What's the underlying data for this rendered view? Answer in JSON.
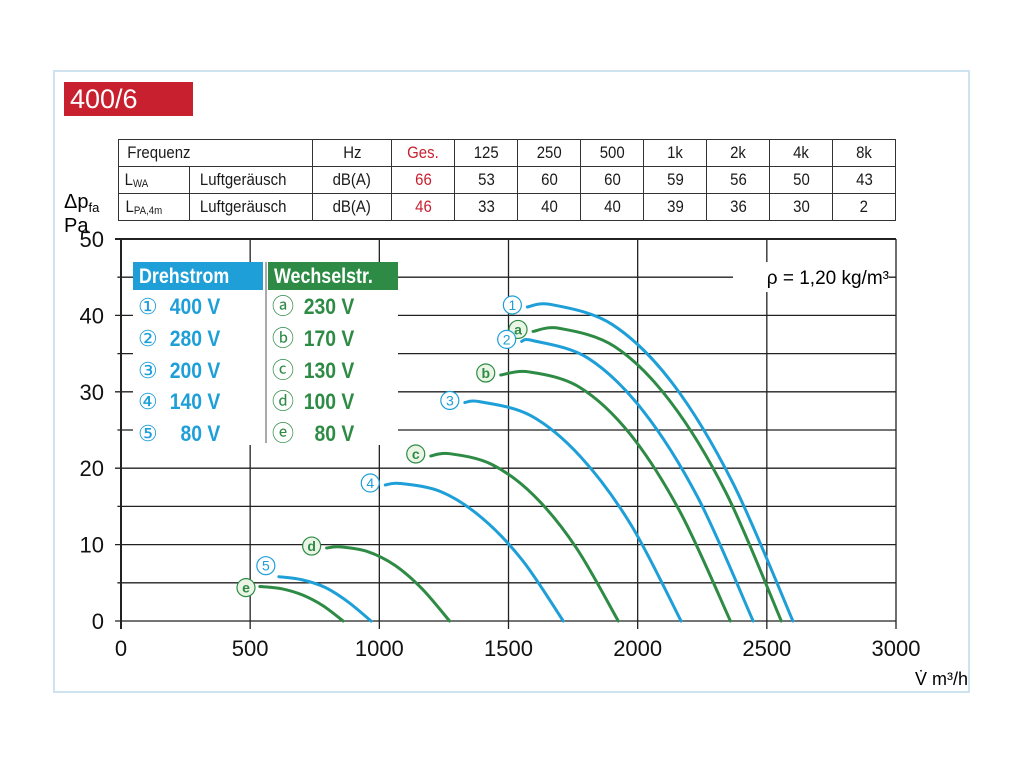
{
  "badge": "400/6",
  "table": {
    "header": [
      "Frequenz",
      "Hz",
      "Ges.",
      "125",
      "250",
      "500",
      "1k",
      "2k",
      "4k",
      "8k"
    ],
    "rows": [
      {
        "symbol": "L",
        "sub": "WA",
        "label": "Luftgeräusch",
        "unit": "dB(A)",
        "total": "66",
        "values": [
          "53",
          "60",
          "60",
          "59",
          "56",
          "50",
          "43"
        ]
      },
      {
        "symbol": "L",
        "sub": "PA,4m",
        "label": "Luftgeräusch",
        "unit": "dB(A)",
        "total": "46",
        "values": [
          "33",
          "40",
          "40",
          "39",
          "36",
          "30",
          "2"
        ]
      }
    ]
  },
  "colors": {
    "blue": "#1e9fd8",
    "green": "#2e8b45",
    "red": "#c8202f"
  },
  "chart_data": {
    "type": "line",
    "title": "400/6",
    "xlabel": "V̇ m³/h",
    "ylabel_main": "Δp",
    "ylabel_sub": "fa",
    "ylabel_unit": "Pa",
    "xlim": [
      0,
      3000
    ],
    "ylim": [
      0,
      50
    ],
    "xticks": [
      "0",
      "500",
      "1000",
      "1500",
      "2000",
      "2500",
      "3000"
    ],
    "yticks": [
      "0",
      "10",
      "20",
      "30",
      "40",
      "50"
    ],
    "grid": true,
    "annotation": "ρ = 1,20 kg/m³",
    "legend": {
      "placement": "top-left",
      "groups": [
        {
          "title": "Drehstrom",
          "color": "blue",
          "items": [
            {
              "symbol": "①",
              "label": "400 V"
            },
            {
              "symbol": "②",
              "label": "280 V"
            },
            {
              "symbol": "③",
              "label": "200 V"
            },
            {
              "symbol": "④",
              "label": "140 V"
            },
            {
              "symbol": "⑤",
              "label": "80 V"
            }
          ]
        },
        {
          "title": "Wechselstr.",
          "color": "green",
          "items": [
            {
              "symbol": "ⓐ",
              "label": "230 V"
            },
            {
              "symbol": "ⓑ",
              "label": "170 V"
            },
            {
              "symbol": "ⓒ",
              "label": "130 V"
            },
            {
              "symbol": "ⓓ",
              "label": "100 V"
            },
            {
              "symbol": "ⓔ",
              "label": "80 V"
            }
          ]
        }
      ]
    },
    "series": [
      {
        "id": "1",
        "name": "400 V",
        "color": "blue",
        "points": [
          [
            1573,
            41.1
          ],
          [
            1669,
            41.4
          ],
          [
            1902,
            38.8
          ],
          [
            2135,
            31.1
          ],
          [
            2368,
            18.1
          ],
          [
            2601,
            0
          ]
        ]
      },
      {
        "id": "a",
        "name": "230 V",
        "color": "green",
        "points": [
          [
            1595,
            37.9
          ],
          [
            1698,
            38.3
          ],
          [
            1912,
            35.9
          ],
          [
            2127,
            28.7
          ],
          [
            2342,
            16.8
          ],
          [
            2556,
            0
          ]
        ]
      },
      {
        "id": "2",
        "name": "280 V",
        "color": "blue",
        "points": [
          [
            1551,
            36.6
          ],
          [
            1595,
            36.7
          ],
          [
            1808,
            34.4
          ],
          [
            2021,
            27.5
          ],
          [
            2234,
            16.1
          ],
          [
            2447,
            0
          ]
        ]
      },
      {
        "id": "b",
        "name": "170 V",
        "color": "green",
        "points": [
          [
            1470,
            32.2
          ],
          [
            1580,
            32.6
          ],
          [
            1775,
            30.6
          ],
          [
            1970,
            24.5
          ],
          [
            2164,
            14.3
          ],
          [
            2359,
            0
          ]
        ]
      },
      {
        "id": "3",
        "name": "200 V",
        "color": "blue",
        "points": [
          [
            1331,
            28.6
          ],
          [
            1390,
            28.7
          ],
          [
            1585,
            26.9
          ],
          [
            1779,
            21.5
          ],
          [
            1974,
            12.6
          ],
          [
            2168,
            0
          ]
        ]
      },
      {
        "id": "c",
        "name": "130 V",
        "color": "green",
        "points": [
          [
            1199,
            21.6
          ],
          [
            1272,
            21.9
          ],
          [
            1435,
            20.5
          ],
          [
            1599,
            16.4
          ],
          [
            1762,
            9.6
          ],
          [
            1925,
            0
          ]
        ]
      },
      {
        "id": "4",
        "name": "140 V",
        "color": "blue",
        "points": [
          [
            1023,
            17.8
          ],
          [
            1082,
            18.0
          ],
          [
            1240,
            16.9
          ],
          [
            1397,
            13.5
          ],
          [
            1555,
            7.9
          ],
          [
            1712,
            0
          ]
        ]
      },
      {
        "id": "d",
        "name": "100 V",
        "color": "green",
        "points": [
          [
            796,
            9.55
          ],
          [
            847,
            9.7
          ],
          [
            953,
            9.1
          ],
          [
            1060,
            7.3
          ],
          [
            1166,
            4.2
          ],
          [
            1272,
            0
          ]
        ]
      },
      {
        "id": "5",
        "name": "80 V",
        "color": "blue",
        "points": [
          [
            611,
            5.8
          ],
          [
            700,
            5.4
          ],
          [
            790,
            4.4
          ],
          [
            879,
            2.5
          ],
          [
            968,
            0
          ]
        ]
      },
      {
        "id": "e",
        "name": "80 V",
        "color": "green",
        "points": [
          [
            538,
            4.5
          ],
          [
            546,
            4.5
          ],
          [
            625,
            4.2
          ],
          [
            703,
            3.4
          ],
          [
            782,
            2.0
          ],
          [
            860,
            0
          ]
        ]
      }
    ]
  }
}
